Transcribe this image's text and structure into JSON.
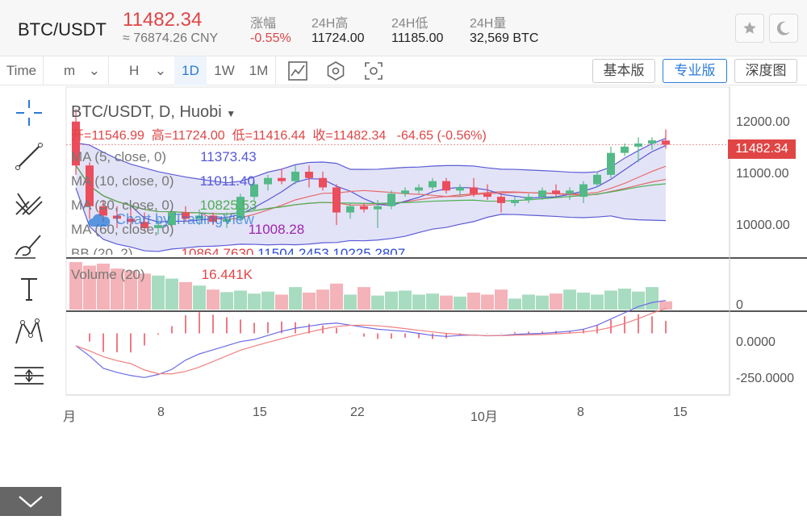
{
  "header": {
    "pair": "BTC/USDT",
    "price": "11482.34",
    "cny": "≈ 76874.26 CNY",
    "stats": [
      {
        "label": "涨幅",
        "value": "-0.55%"
      },
      {
        "label": "24H高",
        "value": "11724.00"
      },
      {
        "label": "24H低",
        "value": "11185.00"
      },
      {
        "label": "24H量",
        "value": "32,569 BTC"
      }
    ]
  },
  "toolbar": {
    "time": "Time",
    "m": "m",
    "h": "H",
    "d1": "1D",
    "w1": "1W",
    "m1": "1M",
    "basic": "基本版",
    "pro": "专业版",
    "depth": "深度图"
  },
  "icons": {
    "star": "star-icon",
    "moon": "moon-icon",
    "crosshair": "crosshair-icon",
    "trend": "trend-line-icon",
    "fork": "pitchfork-icon",
    "brush": "brush-icon",
    "text": "text-icon",
    "pattern": "pattern-icon",
    "measure": "measure-icon",
    "collapse": "chevron-down-icon"
  },
  "colors": {
    "up": "#53b987",
    "down": "#eb4d5c",
    "ma5": "#5658d8",
    "ma10": "#e66b6b",
    "ma30": "#4caf50",
    "ma60": "#9c27b0",
    "bb": "#5b5bd6"
  },
  "chart": {
    "title": "BTC/USDT, D, Huobi",
    "ohlc": {
      "o_label": "开=",
      "o": "11546.99",
      "h_label": "高=",
      "h": "11724.00",
      "l_label": "低=",
      "l": "11416.44",
      "c_label": "收=",
      "c": "11482.34",
      "chg": "-64.65 (-0.56%)"
    },
    "ma": [
      {
        "label": "MA (5, close, 0)",
        "value": "11373.43"
      },
      {
        "label": "MA (10, close, 0)",
        "value": "11011.40"
      },
      {
        "label": "MA (30, close, 0)",
        "value": "10825.53"
      },
      {
        "label": "MA (60, close, 0)",
        "value": "11008.28"
      }
    ],
    "bb": {
      "label": "BB (20, 2)",
      "v1": "10864.7630",
      "v2": "11504.2453",
      "v3": "10225.2807"
    },
    "volume": {
      "label": "Volume (20)",
      "value": "16.441K"
    },
    "watermark": "Chart by TradingView",
    "last_price_tag": "11482.34",
    "price_ticks": [
      "12000.00",
      "11000.00",
      "10000.00"
    ],
    "vol_tick": "0",
    "macd_ticks": [
      "0.0000",
      "-250.0000"
    ],
    "x_ticks": [
      "月",
      "8",
      "15",
      "22",
      "10月",
      "8",
      "15"
    ]
  },
  "chart_data": {
    "type": "candlestick",
    "title": "BTC/USDT, D, Huobi",
    "ylim": [
      9700,
      12400
    ],
    "candles": [
      {
        "o": 11850,
        "h": 12050,
        "l": 11000,
        "c": 11150
      },
      {
        "o": 11150,
        "h": 11200,
        "l": 10300,
        "c": 10500
      },
      {
        "o": 10500,
        "h": 10600,
        "l": 10250,
        "c": 10350
      },
      {
        "o": 10350,
        "h": 10500,
        "l": 10150,
        "c": 10300
      },
      {
        "o": 10300,
        "h": 10450,
        "l": 10150,
        "c": 10250
      },
      {
        "o": 10250,
        "h": 10400,
        "l": 10100,
        "c": 10150
      },
      {
        "o": 10150,
        "h": 10300,
        "l": 10050,
        "c": 10200
      },
      {
        "o": 10200,
        "h": 10450,
        "l": 10150,
        "c": 10400
      },
      {
        "o": 10400,
        "h": 10500,
        "l": 10250,
        "c": 10300
      },
      {
        "o": 10300,
        "h": 10450,
        "l": 10200,
        "c": 10350
      },
      {
        "o": 10350,
        "h": 10400,
        "l": 10200,
        "c": 10250
      },
      {
        "o": 10250,
        "h": 10400,
        "l": 10150,
        "c": 10300
      },
      {
        "o": 10300,
        "h": 10700,
        "l": 10250,
        "c": 10650
      },
      {
        "o": 10650,
        "h": 10900,
        "l": 10600,
        "c": 10850
      },
      {
        "o": 10850,
        "h": 11000,
        "l": 10750,
        "c": 10950
      },
      {
        "o": 10950,
        "h": 11100,
        "l": 10850,
        "c": 10900
      },
      {
        "o": 10900,
        "h": 11150,
        "l": 10850,
        "c": 11050
      },
      {
        "o": 11050,
        "h": 11150,
        "l": 10800,
        "c": 10950
      },
      {
        "o": 10950,
        "h": 11050,
        "l": 10750,
        "c": 10800
      },
      {
        "o": 10800,
        "h": 10850,
        "l": 10200,
        "c": 10400
      },
      {
        "o": 10400,
        "h": 10550,
        "l": 10300,
        "c": 10500
      },
      {
        "o": 10500,
        "h": 10550,
        "l": 10400,
        "c": 10450
      },
      {
        "o": 10450,
        "h": 10600,
        "l": 10150,
        "c": 10500
      },
      {
        "o": 10500,
        "h": 10750,
        "l": 10450,
        "c": 10700
      },
      {
        "o": 10700,
        "h": 10800,
        "l": 10650,
        "c": 10750
      },
      {
        "o": 10750,
        "h": 10850,
        "l": 10700,
        "c": 10800
      },
      {
        "o": 10800,
        "h": 10950,
        "l": 10750,
        "c": 10900
      },
      {
        "o": 10900,
        "h": 10950,
        "l": 10700,
        "c": 10750
      },
      {
        "o": 10750,
        "h": 10850,
        "l": 10650,
        "c": 10800
      },
      {
        "o": 10800,
        "h": 10950,
        "l": 10650,
        "c": 10700
      },
      {
        "o": 10700,
        "h": 10850,
        "l": 10600,
        "c": 10650
      },
      {
        "o": 10650,
        "h": 10700,
        "l": 10400,
        "c": 10550
      },
      {
        "o": 10550,
        "h": 10650,
        "l": 10500,
        "c": 10600
      },
      {
        "o": 10600,
        "h": 10700,
        "l": 10550,
        "c": 10650
      },
      {
        "o": 10650,
        "h": 10800,
        "l": 10600,
        "c": 10750
      },
      {
        "o": 10750,
        "h": 10850,
        "l": 10650,
        "c": 10700
      },
      {
        "o": 10700,
        "h": 10800,
        "l": 10600,
        "c": 10750
      },
      {
        "o": 10650,
        "h": 10900,
        "l": 10550,
        "c": 10850
      },
      {
        "o": 10850,
        "h": 11050,
        "l": 10800,
        "c": 11000
      },
      {
        "o": 11000,
        "h": 11450,
        "l": 10950,
        "c": 11350
      },
      {
        "o": 11350,
        "h": 11500,
        "l": 11300,
        "c": 11450
      },
      {
        "o": 11450,
        "h": 11600,
        "l": 11200,
        "c": 11500
      },
      {
        "o": 11500,
        "h": 11600,
        "l": 11400,
        "c": 11550
      },
      {
        "o": 11546.99,
        "h": 11724,
        "l": 11416.44,
        "c": 11482.34
      }
    ],
    "volume": [
      95,
      88,
      92,
      82,
      78,
      72,
      68,
      62,
      55,
      48,
      40,
      35,
      38,
      32,
      36,
      30,
      45,
      34,
      40,
      52,
      30,
      45,
      28,
      36,
      38,
      30,
      32,
      28,
      26,
      34,
      30,
      40,
      22,
      30,
      28,
      32,
      40,
      34,
      30,
      38,
      42,
      36,
      45,
      16.441
    ],
    "macd": [
      -60,
      -110,
      -170,
      -190,
      -205,
      -215,
      -200,
      -175,
      -130,
      -100,
      -80,
      -60,
      -40,
      -30,
      -10,
      10,
      25,
      35,
      45,
      50,
      40,
      30,
      20,
      15,
      10,
      0,
      -10,
      -15,
      -10,
      -8,
      -12,
      -10,
      -5,
      -2,
      0,
      5,
      10,
      20,
      40,
      70,
      100,
      130,
      150,
      160
    ],
    "macd_ylim": [
      -300,
      100
    ]
  }
}
